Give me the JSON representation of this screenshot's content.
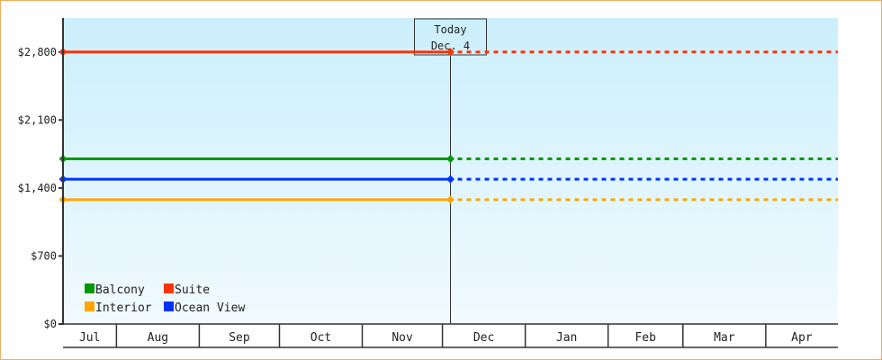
{
  "chart_data": {
    "type": "line",
    "title": "",
    "xlabel": "",
    "ylabel": "",
    "ylim": [
      0,
      3150
    ],
    "yticks": [
      0,
      700,
      1400,
      2100,
      2800
    ],
    "ytick_labels": [
      "$0",
      "$700",
      "$1,400",
      "$2,100",
      "$2,800"
    ],
    "x_categories": [
      "Jul",
      "Aug",
      "Sep",
      "Oct",
      "Nov",
      "Dec",
      "Jan",
      "Feb",
      "Mar",
      "Apr"
    ],
    "xlim": [
      "Jul 12",
      "Apr 27"
    ],
    "today": {
      "label": "Today",
      "date": "Dec. 4"
    },
    "grid": false,
    "legend": "bottom-left",
    "series": [
      {
        "name": "Balcony",
        "color": "#009900",
        "values": [
          1700,
          1700
        ],
        "x": [
          "Jul 12",
          "Dec 4"
        ],
        "projected_to": "Apr 27"
      },
      {
        "name": "Suite",
        "color": "#ff3300",
        "values": [
          2800,
          2800
        ],
        "x": [
          "Jul 12",
          "Dec 4"
        ],
        "projected_to": "Apr 27"
      },
      {
        "name": "Interior",
        "color": "#ffa500",
        "values": [
          1280,
          1280
        ],
        "x": [
          "Jul 12",
          "Dec 4"
        ],
        "projected_to": "Apr 27"
      },
      {
        "name": "Ocean View",
        "color": "#0033ff",
        "values": [
          1490,
          1490
        ],
        "x": [
          "Jul 12",
          "Dec 4"
        ],
        "projected_to": "Apr 27"
      }
    ]
  }
}
